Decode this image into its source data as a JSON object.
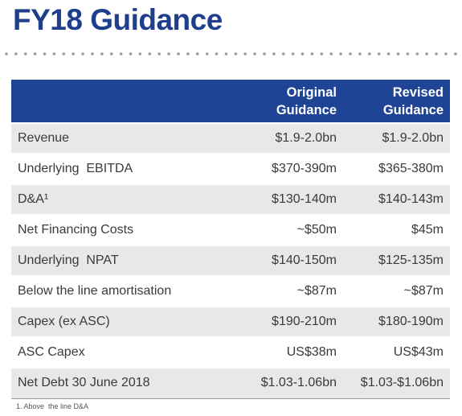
{
  "title": "FY18 Guidance",
  "table": {
    "headers": {
      "col1_line1": "Original",
      "col1_line2": "Guidance",
      "col2_line1": "Revised",
      "col2_line2": "Guidance"
    },
    "rows": [
      {
        "label": "Revenue",
        "original": "$1.9-2.0bn",
        "revised": "$1.9-2.0bn"
      },
      {
        "label": "Underlying  EBITDA",
        "original": "$370-390m",
        "revised": "$365-380m"
      },
      {
        "label": "D&A¹",
        "original": "$130-140m",
        "revised": "$140-143m"
      },
      {
        "label": "Net Financing Costs",
        "original": "~$50m",
        "revised": "$45m"
      },
      {
        "label": "Underlying  NPAT",
        "original": "$140-150m",
        "revised": "$125-135m"
      },
      {
        "label": "Below the line amortisation",
        "original": "~$87m",
        "revised": "~$87m"
      },
      {
        "label": "Capex (ex ASC)",
        "original": "$190-210m",
        "revised": "$180-190m"
      },
      {
        "label": "ASC Capex",
        "original": "US$38m",
        "revised": "US$43m"
      },
      {
        "label": "Net Debt 30 June 2018",
        "original": "$1.03-1.06bn",
        "revised": "$1.03-$1.06bn"
      }
    ]
  },
  "footnote": "1. Above  the line D&A",
  "colors": {
    "brand": "#1f3f8c",
    "header_bg": "#1f4496",
    "row_shade": "#e8e8e8"
  }
}
